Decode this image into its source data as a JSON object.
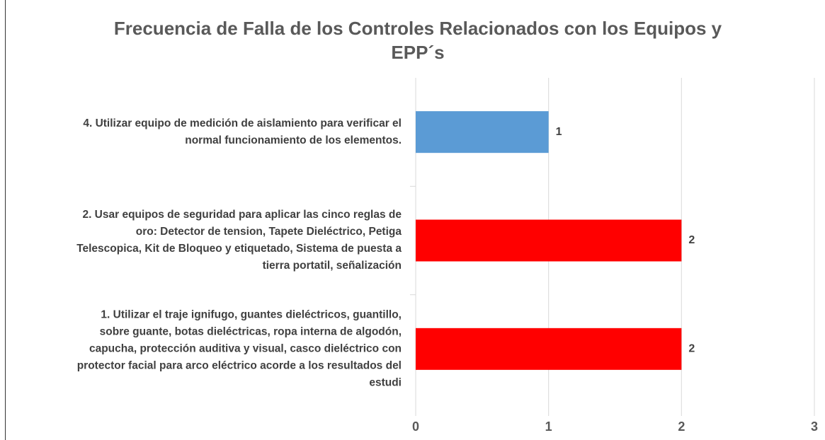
{
  "chart_data": {
    "type": "bar",
    "orientation": "horizontal",
    "title": [
      "Frecuencia de Falla de los Controles Relacionados con los Equipos y",
      "EPP´s"
    ],
    "categories": [
      [
        "4. Utilizar equipo de medición de aislamiento para verificar el",
        "normal funcionamiento de los elementos."
      ],
      [
        "2. Usar equipos de seguridad para aplicar las cinco reglas de",
        "oro:  Detector de tension, Tapete Dieléctrico, Petiga",
        "Telescopica, Kit de Bloqueo y etiquetado, Sistema de puesta a",
        "tierra portatil, señalización"
      ],
      [
        "1. Utilizar el traje ignifugo, guantes dieléctricos, guantillo,",
        "sobre guante,  botas dieléctricas, ropa interna de algodón,",
        "capucha, protección auditiva y visual, casco dieléctrico con",
        "protector facial para arco eléctrico acorde a los resultados del",
        "estudi"
      ]
    ],
    "values": [
      1,
      2,
      2
    ],
    "colors": [
      "#5b9bd5",
      "#ff0000",
      "#ff0000"
    ],
    "xlim": [
      0,
      3
    ],
    "xticks": [
      0,
      1,
      2,
      3
    ],
    "grid": true
  }
}
